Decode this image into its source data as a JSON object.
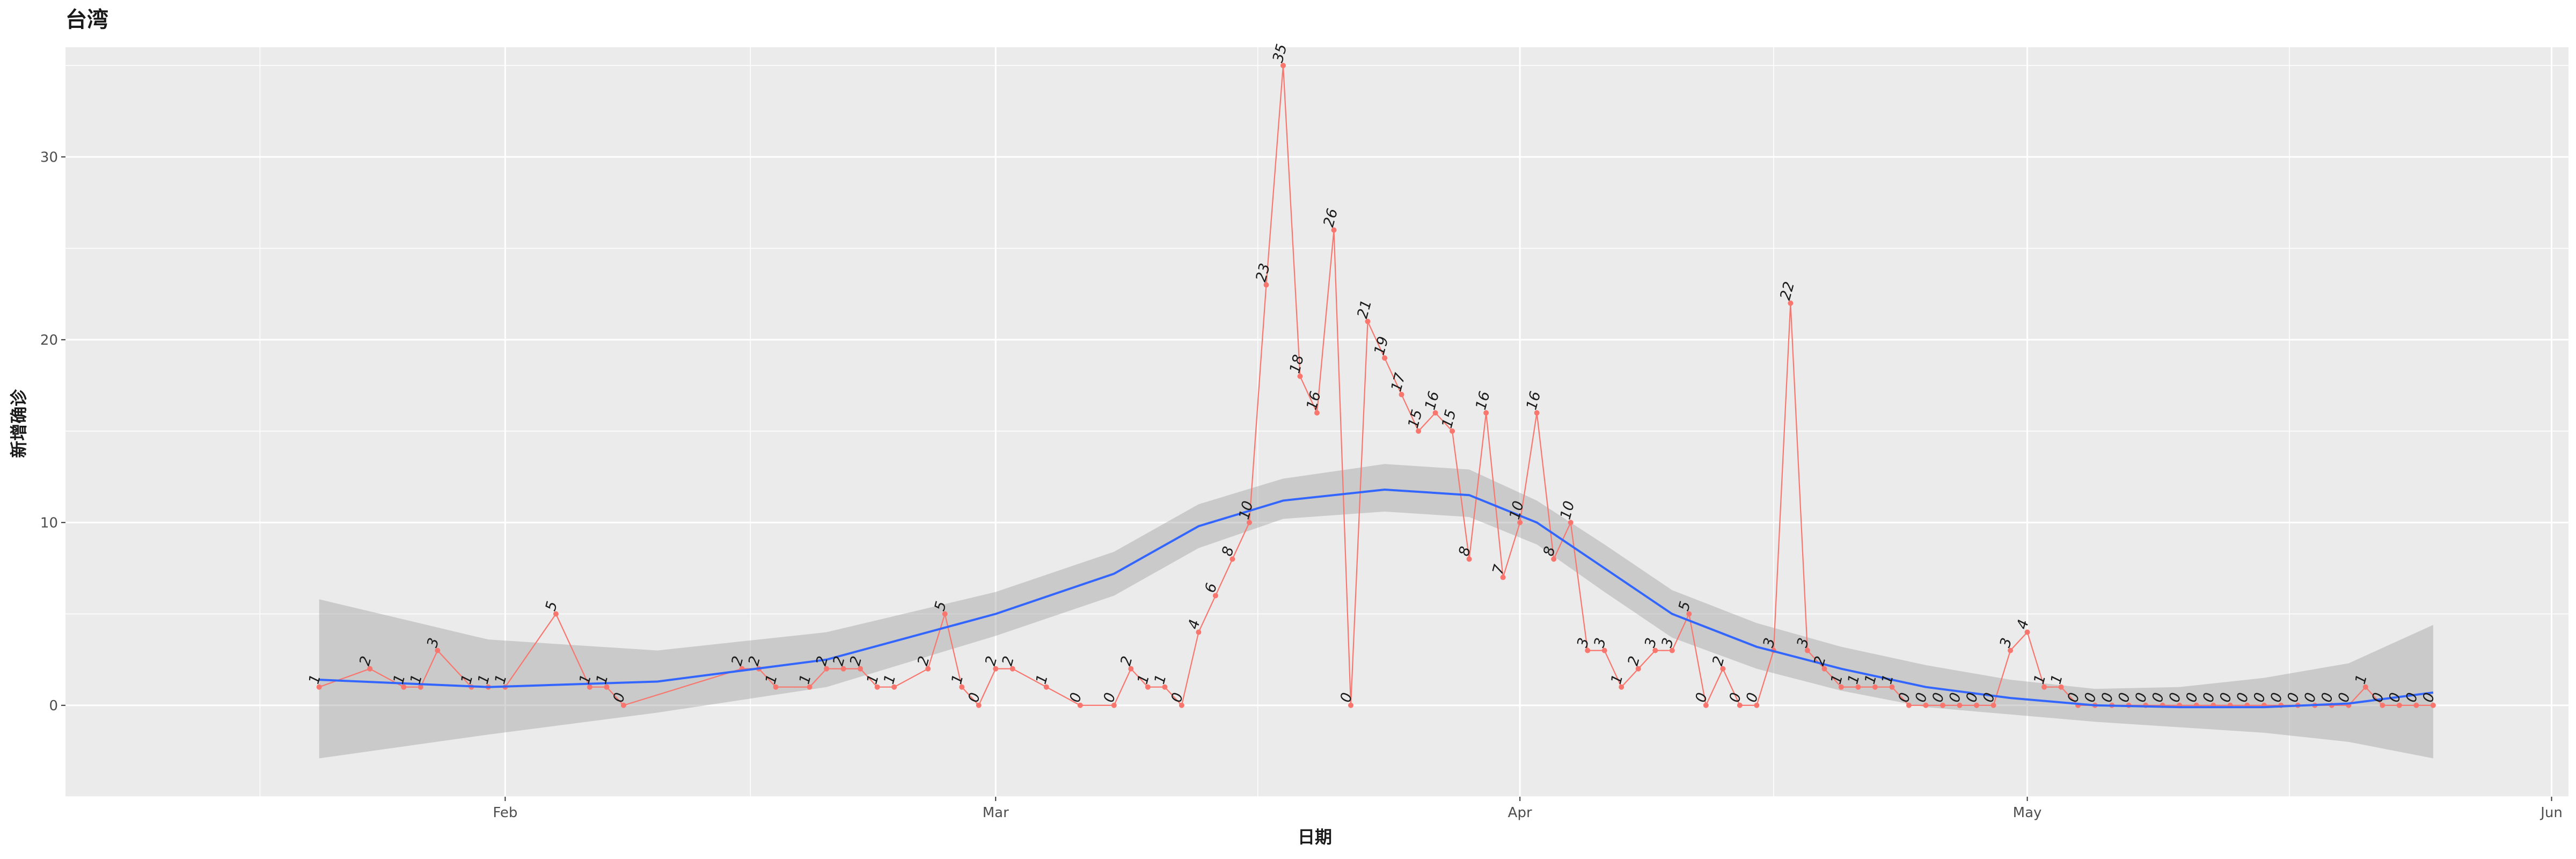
{
  "chart_data": {
    "type": "line",
    "title": "台湾",
    "xlabel": "日期",
    "ylabel": "新增确诊",
    "x_start_date": "2020-01-21",
    "xlim_days": [
      -15,
      133
    ],
    "ylim": [
      -5,
      36
    ],
    "x_ticks": [
      {
        "label": "Feb",
        "day": 11
      },
      {
        "label": "Mar",
        "day": 40
      },
      {
        "label": "Apr",
        "day": 71
      },
      {
        "label": "May",
        "day": 101
      },
      {
        "label": "Jun",
        "day": 132
      }
    ],
    "x_minor_days": [
      -3.5,
      25.5,
      55.5,
      86,
      116.5
    ],
    "y_ticks": [
      0,
      10,
      20,
      30
    ],
    "y_minor": [
      -5,
      5,
      15,
      25,
      35
    ],
    "series": [
      {
        "name": "daily new confirmed",
        "color": "#F8766D",
        "x_days": [
          0,
          3,
          5,
          6,
          7,
          9,
          10,
          11,
          14,
          16,
          17,
          18,
          25,
          26,
          27,
          29,
          30,
          31,
          32,
          33,
          34,
          36,
          37,
          38,
          39,
          40,
          41,
          43,
          45,
          47,
          48,
          49,
          50,
          51,
          52,
          53,
          54,
          55,
          56,
          57,
          58,
          59,
          60,
          61,
          62,
          63,
          64,
          65,
          66,
          67,
          68,
          69,
          70,
          71,
          72,
          73,
          74,
          75,
          76,
          77,
          78,
          79,
          80,
          81,
          82,
          83,
          84,
          85,
          86,
          87,
          88,
          89,
          90,
          91,
          92,
          93,
          94,
          95,
          96,
          97,
          98,
          99,
          100,
          101,
          102,
          103,
          104,
          105,
          106,
          107,
          108,
          109,
          110,
          111,
          112,
          113,
          114,
          115,
          116,
          117,
          118,
          119,
          120,
          121,
          122,
          123,
          124,
          125
        ],
        "values": [
          1,
          2,
          1,
          1,
          3,
          1,
          1,
          1,
          5,
          1,
          1,
          0,
          2,
          2,
          1,
          1,
          2,
          2,
          2,
          1,
          1,
          2,
          5,
          1,
          0,
          2,
          2,
          1,
          0,
          0,
          2,
          1,
          1,
          0,
          4,
          6,
          8,
          10,
          23,
          35,
          18,
          16,
          26,
          0,
          21,
          19,
          17,
          15,
          16,
          15,
          8,
          16,
          7,
          10,
          16,
          8,
          10,
          3,
          3,
          1,
          2,
          3,
          3,
          5,
          0,
          2,
          0,
          0,
          3,
          22,
          3,
          2,
          1,
          1,
          1,
          1,
          0,
          0,
          0,
          0,
          0,
          0,
          3,
          4,
          1,
          1,
          0,
          0,
          0,
          0,
          0,
          0,
          0,
          0,
          0,
          0,
          0,
          0,
          0,
          0,
          0,
          0,
          0,
          1,
          0,
          0,
          0,
          0
        ]
      },
      {
        "name": "loess smooth",
        "color": "#3366FF",
        "x_days": [
          0,
          10,
          20,
          30,
          40,
          47,
          52,
          57,
          63,
          68,
          72,
          76,
          80,
          85,
          90,
          95,
          100,
          105,
          110,
          115,
          120,
          125
        ],
        "values": [
          1.4,
          1.0,
          1.3,
          2.5,
          5.0,
          7.2,
          9.8,
          11.2,
          11.8,
          11.5,
          10.0,
          7.5,
          5.0,
          3.2,
          2.0,
          1.0,
          0.4,
          0.0,
          -0.1,
          -0.1,
          0.1,
          0.7
        ],
        "ci_lower": [
          -2.9,
          -1.6,
          -0.4,
          1.0,
          3.8,
          6.0,
          8.6,
          10.2,
          10.6,
          10.3,
          8.8,
          6.2,
          3.7,
          2.0,
          0.8,
          -0.1,
          -0.5,
          -0.9,
          -1.2,
          -1.5,
          -2.0,
          -2.9
        ],
        "ci_upper": [
          5.8,
          3.6,
          3.0,
          4.0,
          6.2,
          8.4,
          11.0,
          12.4,
          13.2,
          12.9,
          11.2,
          8.8,
          6.3,
          4.5,
          3.2,
          2.2,
          1.4,
          0.9,
          1.0,
          1.5,
          2.3,
          4.4
        ]
      }
    ]
  }
}
